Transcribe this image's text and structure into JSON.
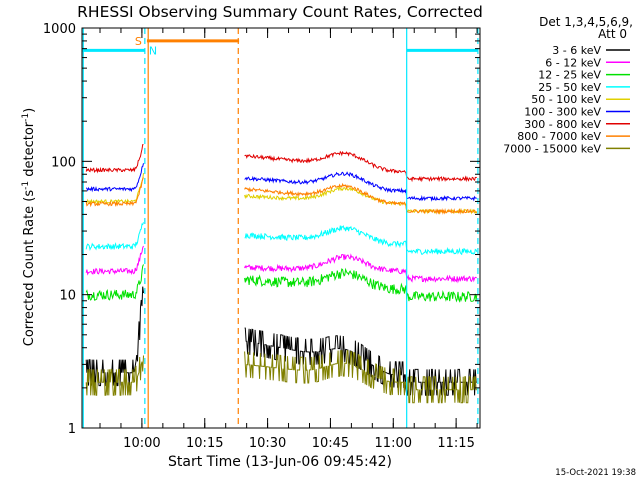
{
  "chart_data": {
    "type": "line",
    "title": "RHESSI Observing Summary Count Rates, Corrected",
    "xlabel": "Start Time (13-Jun-06 09:45:42)",
    "ylabel": "Corrected Count Rate (s^-1 detector^-1)",
    "ylabel_main": "Corrected Count Rate (s",
    "ylabel_sup1": "-1",
    "ylabel_mid": " detector",
    "ylabel_sup2": "-1",
    "ylabel_end": ")",
    "yscale": "log",
    "ylim": [
      1,
      1000
    ],
    "xlim_minutes": [
      0,
      95
    ],
    "x_ticks": [
      {
        "label": "10:00",
        "minute": 14.3
      },
      {
        "label": "10:15",
        "minute": 29.3
      },
      {
        "label": "10:30",
        "minute": 44.3
      },
      {
        "label": "10:45",
        "minute": 59.3
      },
      {
        "label": "11:00",
        "minute": 74.3
      },
      {
        "label": "11:15",
        "minute": 89.3
      }
    ],
    "y_ticks": [
      {
        "label": "1",
        "value": 1
      },
      {
        "label": "10",
        "value": 10
      },
      {
        "label": "100",
        "value": 100
      },
      {
        "label": "1000",
        "value": 1000
      }
    ],
    "legend_header_1": "Det 1,3,4,5,6,9,",
    "legend_header_2": "Att 0",
    "series": [
      {
        "name": "3 - 6 keV",
        "color": "#000000",
        "base": 2.5,
        "noise": 0.25,
        "pre": 2.6,
        "post": 4.5
      },
      {
        "name": "6 - 12 keV",
        "color": "#ff00ff",
        "base": 15,
        "noise": 0.05,
        "pre": 15,
        "post": 16
      },
      {
        "name": "12 - 25 keV",
        "color": "#00e000",
        "base": 11,
        "noise": 0.09,
        "pre": 10,
        "post": 13
      },
      {
        "name": "25 - 50 keV",
        "color": "#00ffff",
        "base": 24,
        "noise": 0.05,
        "pre": 23,
        "post": 28
      },
      {
        "name": "50 - 100 keV",
        "color": "#e0d000",
        "base": 48,
        "noise": 0.03,
        "pre": 50,
        "post": 55
      },
      {
        "name": "100 - 300 keV",
        "color": "#0000ff",
        "base": 60,
        "noise": 0.03,
        "pre": 62,
        "post": 75
      },
      {
        "name": "300 - 800 keV",
        "color": "#e00000",
        "base": 84,
        "noise": 0.03,
        "pre": 86,
        "post": 110
      },
      {
        "name": "800 - 7000 keV",
        "color": "#ff8000",
        "base": 48,
        "noise": 0.03,
        "pre": 48,
        "post": 62
      },
      {
        "name": "7000 - 15000 keV",
        "color": "#808000",
        "base": 2.2,
        "noise": 0.2,
        "pre": 2.2,
        "post": 3
      }
    ],
    "data_gaps_minutes": [
      [
        15.5,
        38.0
      ]
    ],
    "saa_segment": {
      "label": "S",
      "start_minute": 15.5,
      "end_minute": 37.5,
      "value": 800,
      "color": "#ff8000"
    },
    "night_segments": [
      {
        "label": "N",
        "start_minute": 0,
        "end_minute": 15.0,
        "value": 680,
        "color": "#00e8ff"
      },
      {
        "label": "",
        "start_minute": 77.5,
        "end_minute": 94.5,
        "value": 680,
        "color": "#00e8ff"
      }
    ],
    "vertical_markers": [
      {
        "minute": 0.3,
        "color": "#00e8ff",
        "style": "solid"
      },
      {
        "minute": 15.0,
        "color": "#00e8ff",
        "style": "dashed"
      },
      {
        "minute": 15.8,
        "color": "#ff8000",
        "style": "solid"
      },
      {
        "minute": 37.3,
        "color": "#ff8000",
        "style": "dashed"
      },
      {
        "minute": 77.5,
        "color": "#00e8ff",
        "style": "solid"
      },
      {
        "minute": 94.5,
        "color": "#00e8ff",
        "style": "dashed"
      }
    ],
    "footer_timestamp": "15-Oct-2021 19:38"
  }
}
